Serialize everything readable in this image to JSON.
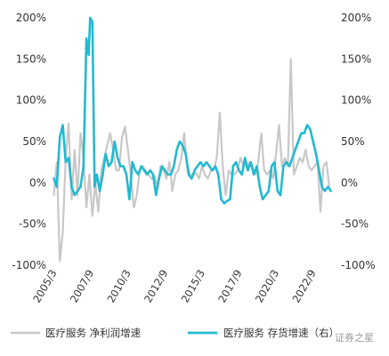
{
  "chart_data": {
    "type": "line",
    "title": "",
    "left_axis": {
      "ylim": [
        -100,
        200
      ],
      "ticks": [
        "-100%",
        "-50%",
        "0%",
        "50%",
        "100%",
        "150%",
        "200%"
      ],
      "tick_values": [
        -100,
        -50,
        0,
        50,
        100,
        150,
        200
      ]
    },
    "right_axis": {
      "ylim": [
        -100,
        200
      ],
      "ticks": [
        "-100%",
        "-50%",
        "0%",
        "50%",
        "100%",
        "150%",
        "200%"
      ],
      "tick_values": [
        -100,
        -50,
        0,
        50,
        100,
        150,
        200
      ]
    },
    "x_ticks": [
      "2005/3",
      "2007/9",
      "2010/3",
      "2012/9",
      "2015/3",
      "2017/9",
      "2020/3",
      "2022/9"
    ],
    "x_tick_values": [
      2005.17,
      2007.67,
      2010.17,
      2012.67,
      2015.17,
      2017.67,
      2020.17,
      2022.67
    ],
    "xlim": [
      2005.17,
      2024.1
    ],
    "grid": false,
    "legend_position": "bottom",
    "series": [
      {
        "name": "医疗服务 净利润增速",
        "axis": "left",
        "color": "#c8c8c8",
        "x": [
          2005.2,
          2005.4,
          2005.6,
          2005.8,
          2006.0,
          2006.2,
          2006.4,
          2006.6,
          2006.8,
          2007.0,
          2007.2,
          2007.4,
          2007.6,
          2007.8,
          2008.0,
          2008.2,
          2008.4,
          2008.6,
          2008.8,
          2009.0,
          2009.2,
          2009.4,
          2009.6,
          2009.8,
          2010.0,
          2010.2,
          2010.4,
          2010.6,
          2010.8,
          2011.0,
          2011.2,
          2011.4,
          2011.6,
          2011.8,
          2012.0,
          2012.2,
          2012.4,
          2012.6,
          2012.8,
          2013.0,
          2013.2,
          2013.4,
          2013.6,
          2013.8,
          2014.0,
          2014.2,
          2014.4,
          2014.6,
          2014.8,
          2015.0,
          2015.2,
          2015.4,
          2015.6,
          2015.8,
          2016.0,
          2016.2,
          2016.4,
          2016.6,
          2016.8,
          2017.0,
          2017.2,
          2017.4,
          2017.6,
          2017.8,
          2018.0,
          2018.2,
          2018.4,
          2018.6,
          2018.8,
          2019.0,
          2019.2,
          2019.4,
          2019.6,
          2019.8,
          2020.0,
          2020.2,
          2020.4,
          2020.6,
          2020.8,
          2021.0,
          2021.2,
          2021.4,
          2021.6,
          2021.8,
          2022.0,
          2022.2,
          2022.4,
          2022.6,
          2022.8,
          2023.0,
          2023.2,
          2023.4,
          2023.6,
          2023.8
        ],
        "y": [
          -15,
          25,
          -95,
          -60,
          30,
          72,
          -20,
          40,
          -15,
          60,
          30,
          -30,
          10,
          -40,
          0,
          -35,
          15,
          30,
          45,
          60,
          40,
          15,
          15,
          55,
          68,
          40,
          10,
          -30,
          -15,
          15,
          20,
          15,
          10,
          5,
          8,
          -5,
          20,
          15,
          5,
          25,
          -10,
          10,
          15,
          30,
          60,
          20,
          10,
          8,
          12,
          5,
          20,
          10,
          5,
          15,
          15,
          30,
          85,
          20,
          -15,
          15,
          10,
          10,
          15,
          30,
          20,
          20,
          25,
          20,
          10,
          25,
          60,
          15,
          10,
          15,
          5,
          35,
          70,
          20,
          30,
          20,
          150,
          10,
          20,
          30,
          25,
          40,
          20,
          15,
          20,
          25,
          -35,
          20,
          25,
          -5
        ]
      },
      {
        "name": "医疗服务 存货增速（右）",
        "axis": "right",
        "color": "#23b9d0",
        "x": [
          2005.2,
          2005.4,
          2005.6,
          2005.8,
          2006.0,
          2006.2,
          2006.4,
          2006.6,
          2006.8,
          2007.0,
          2007.2,
          2007.4,
          2007.55,
          2007.65,
          2007.8,
          2007.95,
          2008.1,
          2008.3,
          2008.5,
          2008.7,
          2008.9,
          2009.1,
          2009.3,
          2009.5,
          2009.7,
          2009.9,
          2010.1,
          2010.3,
          2010.5,
          2010.7,
          2010.9,
          2011.1,
          2011.3,
          2011.5,
          2011.7,
          2011.9,
          2012.1,
          2012.3,
          2012.5,
          2012.7,
          2012.9,
          2013.1,
          2013.3,
          2013.5,
          2013.7,
          2013.9,
          2014.1,
          2014.3,
          2014.5,
          2014.7,
          2014.9,
          2015.1,
          2015.3,
          2015.5,
          2015.7,
          2015.9,
          2016.1,
          2016.3,
          2016.5,
          2016.7,
          2016.9,
          2017.1,
          2017.3,
          2017.5,
          2017.7,
          2017.9,
          2018.1,
          2018.3,
          2018.5,
          2018.7,
          2018.9,
          2019.1,
          2019.3,
          2019.5,
          2019.7,
          2019.9,
          2020.1,
          2020.3,
          2020.5,
          2020.7,
          2020.9,
          2021.1,
          2021.3,
          2021.5,
          2021.7,
          2021.9,
          2022.1,
          2022.3,
          2022.5,
          2022.7,
          2022.9,
          2023.1,
          2023.3,
          2023.5,
          2023.7,
          2023.9
        ],
        "y": [
          5,
          -5,
          55,
          70,
          25,
          30,
          -5,
          -15,
          -10,
          -5,
          20,
          175,
          155,
          200,
          195,
          -5,
          10,
          -10,
          10,
          35,
          20,
          25,
          50,
          30,
          20,
          20,
          10,
          -20,
          25,
          15,
          10,
          20,
          15,
          10,
          15,
          10,
          -15,
          5,
          20,
          15,
          10,
          10,
          20,
          40,
          50,
          45,
          35,
          10,
          5,
          15,
          20,
          25,
          20,
          25,
          20,
          15,
          20,
          10,
          -20,
          -25,
          -22,
          -20,
          20,
          25,
          15,
          10,
          30,
          15,
          25,
          10,
          20,
          -5,
          -20,
          -15,
          -10,
          20,
          25,
          -10,
          -15,
          20,
          25,
          20,
          30,
          40,
          50,
          60,
          60,
          70,
          65,
          50,
          35,
          15,
          -5,
          -10,
          -5,
          -10
        ]
      }
    ]
  },
  "watermark": "证券之星"
}
